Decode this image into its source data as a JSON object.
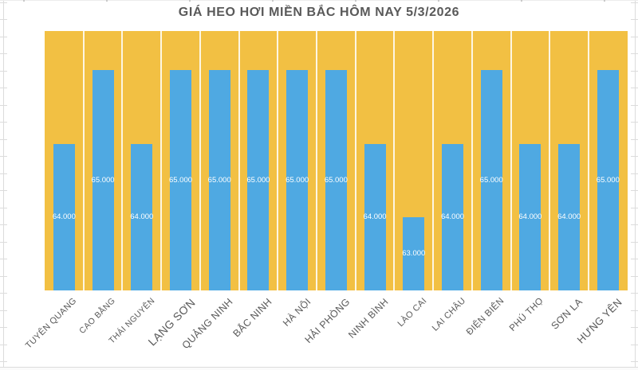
{
  "title": "GIÁ HEO HƠI MIỀN BẮC HÔM NAY 5/3/2026",
  "chart_data": {
    "type": "bar",
    "title": "GIÁ HEO HƠI MIỀN BẮC HÔM NAY 5/3/2026",
    "categories": [
      "TUYÊN QUANG",
      "CAO BẰNG",
      "THÁI NGUYÊN",
      "LẠNG SƠN",
      "QUẢNG NINH",
      "BẮC NINH",
      "HÀ NỘI",
      "HẢI PHÒNG",
      "NINH BÌNH",
      "LÀO CAI",
      "LAI CHÂU",
      "ĐIỆN BIÊN",
      "PHÚ THỌ",
      "SƠN LA",
      "HƯNG YÊN"
    ],
    "values": [
      64000,
      65000,
      64000,
      65000,
      65000,
      65000,
      65000,
      65000,
      64000,
      63000,
      64000,
      65000,
      64000,
      64000,
      65000
    ],
    "value_labels": [
      "64.000",
      "65.000",
      "64.000",
      "65.000",
      "65.000",
      "65.000",
      "65.000",
      "65.000",
      "64.000",
      "63.000",
      "64.000",
      "65.000",
      "64.000",
      "64.000",
      "65.000"
    ],
    "xlabel": "",
    "ylabel": "",
    "ylim": [
      62000,
      65600
    ],
    "grid": false,
    "legend": "none",
    "data_label_position": "center",
    "colors": {
      "bar": "#4FA9E2",
      "plot_background": "#F2C043",
      "title_text": "#595959",
      "axis_text": "#595959",
      "data_label_text": "#FFFFFF"
    }
  }
}
